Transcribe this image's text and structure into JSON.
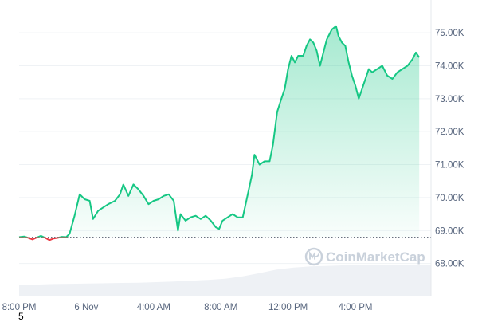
{
  "chart_data": {
    "type": "line",
    "title": "",
    "xlabel": "",
    "ylabel": "",
    "x_ticks": [
      "8:00 PM",
      "6 Nov",
      "4:00 AM",
      "8:00 AM",
      "12:00 PM",
      "4:00 PM"
    ],
    "y_ticks": [
      "68.00K",
      "69.00K",
      "70.00K",
      "71.00K",
      "72.00K",
      "73.00K",
      "74.00K",
      "75.00K"
    ],
    "ylim": [
      67000,
      75800
    ],
    "x_range_hours": [
      0,
      24.5
    ],
    "baseline": 68800,
    "grid": "horizontal",
    "colors": {
      "above": "#16c784",
      "below": "#ea3943",
      "fill": "#16c784",
      "volume": "#eef1f5"
    },
    "series": [
      {
        "values": [
          [
            0.0,
            68800
          ],
          [
            0.3,
            68820
          ],
          [
            0.55,
            68780
          ],
          [
            0.8,
            68730
          ],
          [
            1.05,
            68790
          ],
          [
            1.3,
            68840
          ],
          [
            1.55,
            68780
          ],
          [
            1.8,
            68710
          ],
          [
            2.05,
            68760
          ],
          [
            2.3,
            68780
          ],
          [
            2.55,
            68810
          ],
          [
            2.8,
            68800
          ],
          [
            3.0,
            68900
          ],
          [
            3.3,
            69450
          ],
          [
            3.6,
            70100
          ],
          [
            3.9,
            69950
          ],
          [
            4.2,
            69900
          ],
          [
            4.4,
            69350
          ],
          [
            4.7,
            69600
          ],
          [
            5.0,
            69700
          ],
          [
            5.3,
            69800
          ],
          [
            5.7,
            69900
          ],
          [
            6.0,
            70100
          ],
          [
            6.2,
            70400
          ],
          [
            6.5,
            70050
          ],
          [
            6.8,
            70400
          ],
          [
            7.1,
            70250
          ],
          [
            7.4,
            70050
          ],
          [
            7.7,
            69800
          ],
          [
            8.0,
            69900
          ],
          [
            8.3,
            69950
          ],
          [
            8.6,
            70050
          ],
          [
            8.9,
            70100
          ],
          [
            9.2,
            69900
          ],
          [
            9.45,
            69000
          ],
          [
            9.6,
            69500
          ],
          [
            9.9,
            69300
          ],
          [
            10.2,
            69400
          ],
          [
            10.5,
            69450
          ],
          [
            10.8,
            69350
          ],
          [
            11.1,
            69450
          ],
          [
            11.4,
            69300
          ],
          [
            11.7,
            69100
          ],
          [
            11.9,
            69050
          ],
          [
            12.1,
            69300
          ],
          [
            12.4,
            69400
          ],
          [
            12.7,
            69500
          ],
          [
            13.0,
            69400
          ],
          [
            13.3,
            69400
          ],
          [
            13.6,
            70100
          ],
          [
            13.85,
            70700
          ],
          [
            14.0,
            71300
          ],
          [
            14.3,
            71000
          ],
          [
            14.6,
            71100
          ],
          [
            14.9,
            71100
          ],
          [
            15.1,
            71600
          ],
          [
            15.35,
            72600
          ],
          [
            15.6,
            73000
          ],
          [
            15.8,
            73300
          ],
          [
            16.0,
            73900
          ],
          [
            16.2,
            74300
          ],
          [
            16.4,
            74100
          ],
          [
            16.6,
            74300
          ],
          [
            16.9,
            74300
          ],
          [
            17.1,
            74600
          ],
          [
            17.3,
            74800
          ],
          [
            17.5,
            74700
          ],
          [
            17.7,
            74450
          ],
          [
            17.9,
            74000
          ],
          [
            18.1,
            74400
          ],
          [
            18.3,
            74800
          ],
          [
            18.6,
            75100
          ],
          [
            18.85,
            75200
          ],
          [
            19.0,
            74900
          ],
          [
            19.2,
            74700
          ],
          [
            19.4,
            74600
          ],
          [
            19.6,
            74100
          ],
          [
            19.8,
            73700
          ],
          [
            20.0,
            73400
          ],
          [
            20.2,
            73000
          ],
          [
            20.4,
            73300
          ],
          [
            20.6,
            73600
          ],
          [
            20.8,
            73900
          ],
          [
            21.0,
            73800
          ],
          [
            21.3,
            73900
          ],
          [
            21.6,
            74000
          ],
          [
            21.9,
            73700
          ],
          [
            22.2,
            73600
          ],
          [
            22.5,
            73800
          ],
          [
            22.8,
            73900
          ],
          [
            23.1,
            74000
          ],
          [
            23.4,
            74200
          ],
          [
            23.6,
            74400
          ],
          [
            23.8,
            74250
          ]
        ]
      }
    ],
    "volume": [
      0.3,
      0.31,
      0.33,
      0.34,
      0.35,
      0.36,
      0.37,
      0.38,
      0.4,
      0.42,
      0.45,
      0.48,
      0.52,
      0.6,
      0.72,
      0.85,
      0.92,
      0.96,
      0.98,
      1.0,
      1.0,
      1.0,
      1.0,
      1.0,
      1.0
    ]
  },
  "watermark": {
    "text": "CoinMarketCap",
    "icon": "coinmarketcap-logo-icon"
  },
  "footnote": "5"
}
